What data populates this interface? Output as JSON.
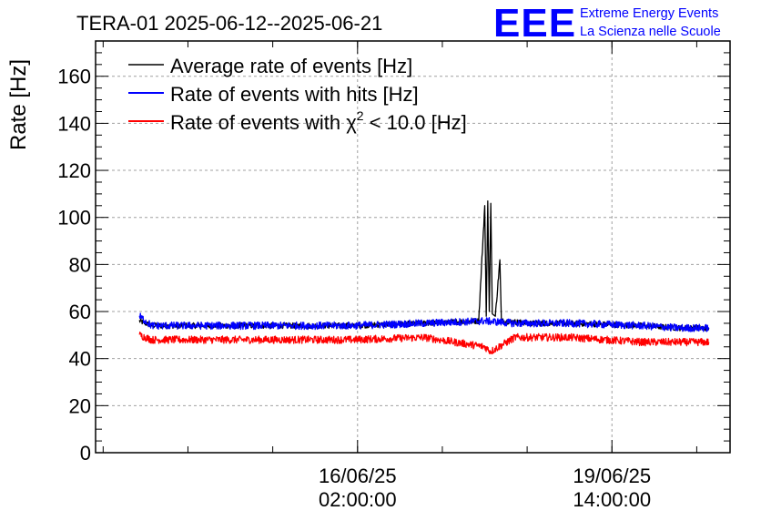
{
  "chart_data": {
    "type": "line",
    "title": "TERA-01 2025-06-12--2025-06-21",
    "ylabel": "Rate [Hz]",
    "xlabel": "",
    "ylim": [
      0,
      175
    ],
    "yticks": [
      0,
      20,
      40,
      60,
      80,
      100,
      120,
      140,
      160
    ],
    "x_range": [
      "2025-06-12T11:30:00",
      "2025-06-21T05:00:00"
    ],
    "xticks": [
      {
        "x": "2025-06-16T02:00:00",
        "date": "16/06/25",
        "time": "02:00:00"
      },
      {
        "x": "2025-06-19T14:00:00",
        "date": "19/06/25",
        "time": "14:00:00"
      }
    ],
    "grid": true,
    "legend_position": "top-left",
    "series": [
      {
        "name": "Average rate of events [Hz]",
        "color": "#000000",
        "points": [
          [
            "2025-06-13T02:00:00",
            56
          ],
          [
            "2025-06-13T06:00:00",
            54
          ],
          [
            "2025-06-14T00:00:00",
            54
          ],
          [
            "2025-06-15T00:00:00",
            54
          ],
          [
            "2025-06-16T00:00:00",
            54
          ],
          [
            "2025-06-17T00:00:00",
            55
          ],
          [
            "2025-06-17T18:00:00",
            56
          ],
          [
            "2025-06-17T20:00:00",
            105
          ],
          [
            "2025-06-17T20:30:00",
            58
          ],
          [
            "2025-06-17T21:00:00",
            107
          ],
          [
            "2025-06-17T21:30:00",
            60
          ],
          [
            "2025-06-17T22:00:00",
            106
          ],
          [
            "2025-06-17T22:30:00",
            59
          ],
          [
            "2025-06-17T23:30:00",
            58
          ],
          [
            "2025-06-18T01:00:00",
            82
          ],
          [
            "2025-06-18T01:30:00",
            56
          ],
          [
            "2025-06-18T12:00:00",
            55
          ],
          [
            "2025-06-19T00:00:00",
            55
          ],
          [
            "2025-06-20T00:00:00",
            54
          ],
          [
            "2025-06-20T12:00:00",
            53
          ],
          [
            "2025-06-20T22:00:00",
            53
          ]
        ]
      },
      {
        "name": "Rate of events with hits [Hz]",
        "color": "#0000ff",
        "points": [
          [
            "2025-06-13T02:00:00",
            58
          ],
          [
            "2025-06-13T06:00:00",
            54
          ],
          [
            "2025-06-14T00:00:00",
            54
          ],
          [
            "2025-06-15T00:00:00",
            54
          ],
          [
            "2025-06-16T00:00:00",
            54
          ],
          [
            "2025-06-17T00:00:00",
            55
          ],
          [
            "2025-06-17T20:00:00",
            56
          ],
          [
            "2025-06-18T06:00:00",
            55
          ],
          [
            "2025-06-19T00:00:00",
            55
          ],
          [
            "2025-06-20T00:00:00",
            54
          ],
          [
            "2025-06-20T12:00:00",
            53
          ],
          [
            "2025-06-20T22:00:00",
            53
          ]
        ]
      },
      {
        "name": "Rate of events with χ² < 10.0 [Hz]",
        "color": "#ff0000",
        "points": [
          [
            "2025-06-13T02:00:00",
            50
          ],
          [
            "2025-06-13T06:00:00",
            48
          ],
          [
            "2025-06-14T00:00:00",
            48
          ],
          [
            "2025-06-15T00:00:00",
            48
          ],
          [
            "2025-06-16T00:00:00",
            48
          ],
          [
            "2025-06-17T00:00:00",
            49
          ],
          [
            "2025-06-17T20:00:00",
            45
          ],
          [
            "2025-06-17T22:00:00",
            43
          ],
          [
            "2025-06-18T06:00:00",
            49
          ],
          [
            "2025-06-19T00:00:00",
            49
          ],
          [
            "2025-06-20T00:00:00",
            47
          ],
          [
            "2025-06-20T12:00:00",
            47
          ],
          [
            "2025-06-20T22:00:00",
            47
          ]
        ]
      }
    ]
  },
  "logo": {
    "text": "EEE",
    "line1": "Extreme Energy Events",
    "line2": "La Scienza nelle Scuole",
    "color": "#0000ff"
  },
  "legend_labels": {
    "avg": "Average rate of events [Hz]",
    "hits": "Rate of events with hits [Hz]",
    "chi_prefix": "Rate of events with ",
    "chi_symbol": "χ",
    "chi_sup": "2",
    "chi_suffix": " < 10.0 [Hz]"
  }
}
